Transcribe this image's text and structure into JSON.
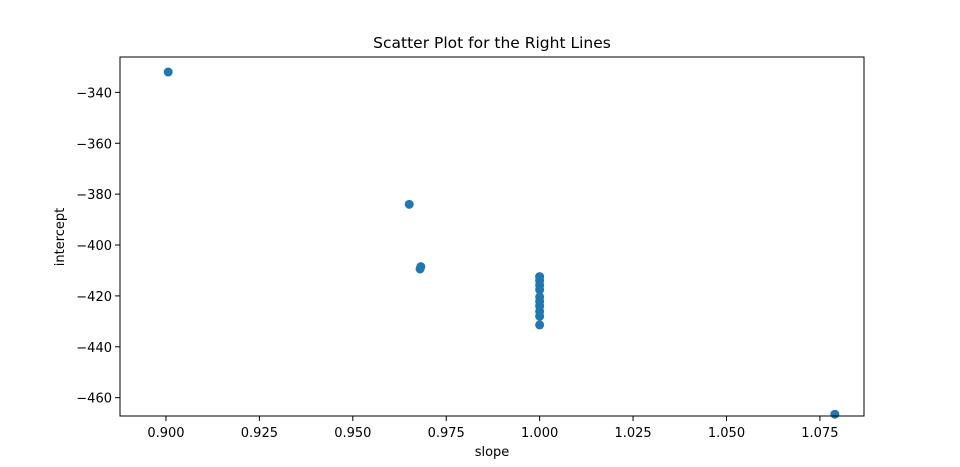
{
  "chart_data": {
    "type": "scatter",
    "title": "Scatter Plot for the Right Lines",
    "xlabel": "slope",
    "ylabel": "intercept",
    "xlim": [
      0.8877,
      1.0868
    ],
    "ylim": [
      -467.2,
      -326.1
    ],
    "grid": false,
    "xticks": [
      {
        "value": 0.9,
        "label": "0.900"
      },
      {
        "value": 0.925,
        "label": "0.925"
      },
      {
        "value": 0.95,
        "label": "0.950"
      },
      {
        "value": 0.975,
        "label": "0.975"
      },
      {
        "value": 1.0,
        "label": "1.000"
      },
      {
        "value": 1.025,
        "label": "1.025"
      },
      {
        "value": 1.05,
        "label": "1.050"
      },
      {
        "value": 1.075,
        "label": "1.075"
      }
    ],
    "yticks": [
      {
        "value": -340,
        "label": "−340"
      },
      {
        "value": -360,
        "label": "−360"
      },
      {
        "value": -380,
        "label": "−380"
      },
      {
        "value": -400,
        "label": "−400"
      },
      {
        "value": -420,
        "label": "−420"
      },
      {
        "value": -440,
        "label": "−440"
      },
      {
        "value": -460,
        "label": "−460"
      }
    ],
    "marker_color": "#1f77b4",
    "points": [
      {
        "x": 0.9006,
        "y": -332.0
      },
      {
        "x": 0.9651,
        "y": -384.0
      },
      {
        "x": 0.9682,
        "y": -408.5
      },
      {
        "x": 0.968,
        "y": -409.4
      },
      {
        "x": 1.0,
        "y": -412.4
      },
      {
        "x": 1.0,
        "y": -414.0
      },
      {
        "x": 1.0,
        "y": -415.8
      },
      {
        "x": 1.0,
        "y": -417.6
      },
      {
        "x": 1.0,
        "y": -420.4
      },
      {
        "x": 1.0,
        "y": -422.2
      },
      {
        "x": 1.0,
        "y": -424.0
      },
      {
        "x": 1.0,
        "y": -426.1
      },
      {
        "x": 1.0,
        "y": -428.0
      },
      {
        "x": 1.0,
        "y": -431.4
      },
      {
        "x": 1.079,
        "y": -466.5
      }
    ]
  }
}
